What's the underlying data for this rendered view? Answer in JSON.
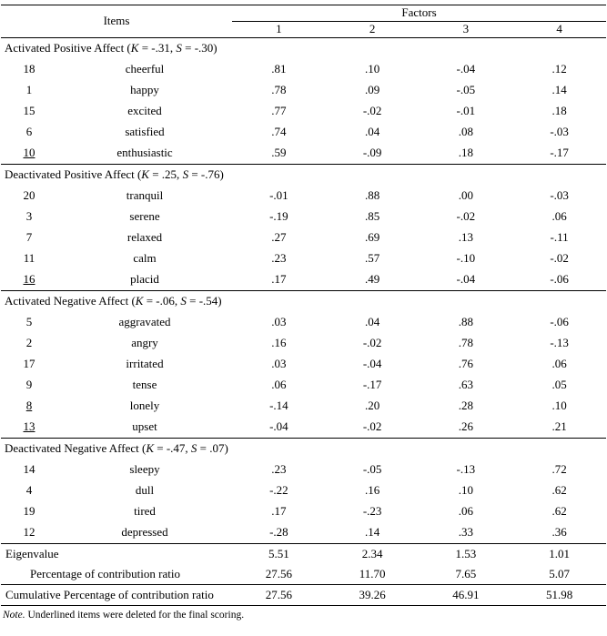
{
  "table": {
    "items_header": "Items",
    "factors_header": "Factors",
    "factor_cols": [
      "1",
      "2",
      "3",
      "4"
    ],
    "sections": [
      {
        "title": "Activated Positive Affect (K = -.31, S = -.30)",
        "rows": [
          {
            "num": "18",
            "underline": false,
            "item": "cheerful",
            "values": [
              ".81",
              ".10",
              "-.04",
              ".12"
            ]
          },
          {
            "num": "1",
            "underline": false,
            "item": "happy",
            "values": [
              ".78",
              ".09",
              "-.05",
              ".14"
            ]
          },
          {
            "num": "15",
            "underline": false,
            "item": "excited",
            "values": [
              ".77",
              "-.02",
              "-.01",
              ".18"
            ]
          },
          {
            "num": "6",
            "underline": false,
            "item": "satisfied",
            "values": [
              ".74",
              ".04",
              ".08",
              "-.03"
            ]
          },
          {
            "num": "10",
            "underline": true,
            "item": "enthusiastic",
            "values": [
              ".59",
              "-.09",
              ".18",
              "-.17"
            ]
          }
        ]
      },
      {
        "title": "Deactivated Positive Affect (K = .25, S = -.76)",
        "rows": [
          {
            "num": "20",
            "underline": false,
            "item": "tranquil",
            "values": [
              "-.01",
              ".88",
              ".00",
              "-.03"
            ]
          },
          {
            "num": "3",
            "underline": false,
            "item": "serene",
            "values": [
              "-.19",
              ".85",
              "-.02",
              ".06"
            ]
          },
          {
            "num": "7",
            "underline": false,
            "item": "relaxed",
            "values": [
              ".27",
              ".69",
              ".13",
              "-.11"
            ]
          },
          {
            "num": "11",
            "underline": false,
            "item": "calm",
            "values": [
              ".23",
              ".57",
              "-.10",
              "-.02"
            ]
          },
          {
            "num": "16",
            "underline": true,
            "item": "placid",
            "values": [
              ".17",
              ".49",
              "-.04",
              "-.06"
            ]
          }
        ]
      },
      {
        "title": "Activated Negative Affect (K = -.06, S = -.54)",
        "rows": [
          {
            "num": "5",
            "underline": false,
            "item": "aggravated",
            "values": [
              ".03",
              ".04",
              ".88",
              "-.06"
            ]
          },
          {
            "num": "2",
            "underline": false,
            "item": "angry",
            "values": [
              ".16",
              "-.02",
              ".78",
              "-.13"
            ]
          },
          {
            "num": "17",
            "underline": false,
            "item": "irritated",
            "values": [
              ".03",
              "-.04",
              ".76",
              ".06"
            ]
          },
          {
            "num": "9",
            "underline": false,
            "item": "tense",
            "values": [
              ".06",
              "-.17",
              ".63",
              ".05"
            ]
          },
          {
            "num": "8",
            "underline": true,
            "item": "lonely",
            "values": [
              "-.14",
              ".20",
              ".28",
              ".10"
            ]
          },
          {
            "num": "13",
            "underline": true,
            "item": "upset",
            "values": [
              "-.04",
              "-.02",
              ".26",
              ".21"
            ]
          }
        ]
      },
      {
        "title": "Deactivated Negative Affect (K = -.47, S = .07)",
        "rows": [
          {
            "num": "14",
            "underline": false,
            "item": "sleepy",
            "values": [
              ".23",
              "-.05",
              "-.13",
              ".72"
            ]
          },
          {
            "num": "4",
            "underline": false,
            "item": "dull",
            "values": [
              "-.22",
              ".16",
              ".10",
              ".62"
            ]
          },
          {
            "num": "19",
            "underline": false,
            "item": "tired",
            "values": [
              ".17",
              "-.23",
              ".06",
              ".62"
            ]
          },
          {
            "num": "12",
            "underline": false,
            "item": "depressed",
            "values": [
              "-.28",
              ".14",
              ".33",
              ".36"
            ]
          }
        ]
      }
    ],
    "summary_rows": [
      {
        "label": "Eigenvalue",
        "indent": 0,
        "values": [
          "5.51",
          "2.34",
          "1.53",
          "1.01"
        ]
      },
      {
        "label": "Percentage of contribution ratio",
        "indent": 1,
        "values": [
          "27.56",
          "11.70",
          "7.65",
          "5.07"
        ]
      },
      {
        "label": "Cumulative Percentage of contribution ratio",
        "indent": 0,
        "values": [
          "27.56",
          "39.26",
          "46.91",
          "51.98"
        ]
      }
    ],
    "note_label": "Note.",
    "note_text": "Underlined items were deleted for the final scoring."
  }
}
